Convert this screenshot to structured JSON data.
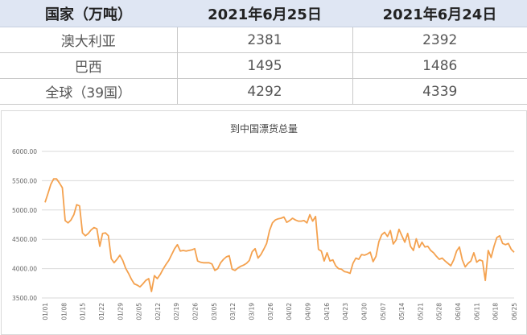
{
  "table": {
    "headers": [
      "国家（万吨）",
      "2021年6月25日",
      "2021年6月24日"
    ],
    "rows": [
      {
        "country": "澳大利亚",
        "jun25": "2381",
        "jun24": "2392"
      },
      {
        "country": "巴西",
        "jun25": "1495",
        "jun24": "1486"
      },
      {
        "country": "全球（39国）",
        "jun25": "4292",
        "jun24": "4339"
      }
    ]
  },
  "colors": {
    "line": "#f4a14e",
    "header_bg": "#dfe6f3",
    "grid": "#d9d9d9"
  },
  "chart_data": {
    "type": "line",
    "title": "到中国漂货总量",
    "ylim": [
      3500,
      6000
    ],
    "yticks": [
      "3500.00",
      "4000.00",
      "4500.00",
      "5000.00",
      "5500.00",
      "6000.00"
    ],
    "xticks": [
      "01/01",
      "01/08",
      "01/15",
      "01/22",
      "01/29",
      "02/05",
      "02/12",
      "02/19",
      "02/26",
      "03/05",
      "03/12",
      "03/19",
      "03/26",
      "04/02",
      "04/09",
      "04/16",
      "04/23",
      "04/30",
      "05/07",
      "05/14",
      "05/21",
      "05/28",
      "06/04",
      "06/11",
      "06/18",
      "06/25"
    ],
    "grid": true,
    "legend": "none",
    "series": [
      {
        "values": [
          5130,
          5280,
          5440,
          5530,
          5530,
          5460,
          5380,
          4820,
          4780,
          4830,
          4920,
          5090,
          5070,
          4610,
          4560,
          4600,
          4660,
          4700,
          4680,
          4380,
          4600,
          4610,
          4560,
          4170,
          4100,
          4160,
          4230,
          4140,
          4010,
          3920,
          3820,
          3740,
          3720,
          3690,
          3740,
          3800,
          3830,
          3610,
          3880,
          3830,
          3900,
          3990,
          4070,
          4140,
          4240,
          4340,
          4410,
          4300,
          4310,
          4300,
          4310,
          4320,
          4340,
          4130,
          4110,
          4100,
          4100,
          4100,
          4080,
          3970,
          4000,
          4100,
          4160,
          4200,
          4220,
          3990,
          3970,
          4010,
          4040,
          4060,
          4090,
          4140,
          4290,
          4340,
          4180,
          4240,
          4330,
          4430,
          4650,
          4780,
          4830,
          4850,
          4860,
          4880,
          4790,
          4820,
          4860,
          4830,
          4810,
          4810,
          4820,
          4780,
          4920,
          4810,
          4890,
          4330,
          4300,
          4130,
          4270,
          4130,
          4150,
          4050,
          4000,
          3990,
          3950,
          3940,
          3920,
          4090,
          4180,
          4160,
          4240,
          4230,
          4250,
          4280,
          4120,
          4210,
          4460,
          4580,
          4620,
          4550,
          4650,
          4420,
          4490,
          4670,
          4560,
          4450,
          4600,
          4380,
          4310,
          4510,
          4360,
          4450,
          4370,
          4380,
          4310,
          4270,
          4210,
          4160,
          4180,
          4130,
          4090,
          4050,
          4150,
          4300,
          4370,
          4150,
          4030,
          4090,
          4130,
          4270,
          4110,
          4150,
          4130,
          3800,
          4310,
          4190,
          4380,
          4530,
          4560,
          4430,
          4410,
          4430,
          4330,
          4280
        ]
      }
    ]
  }
}
